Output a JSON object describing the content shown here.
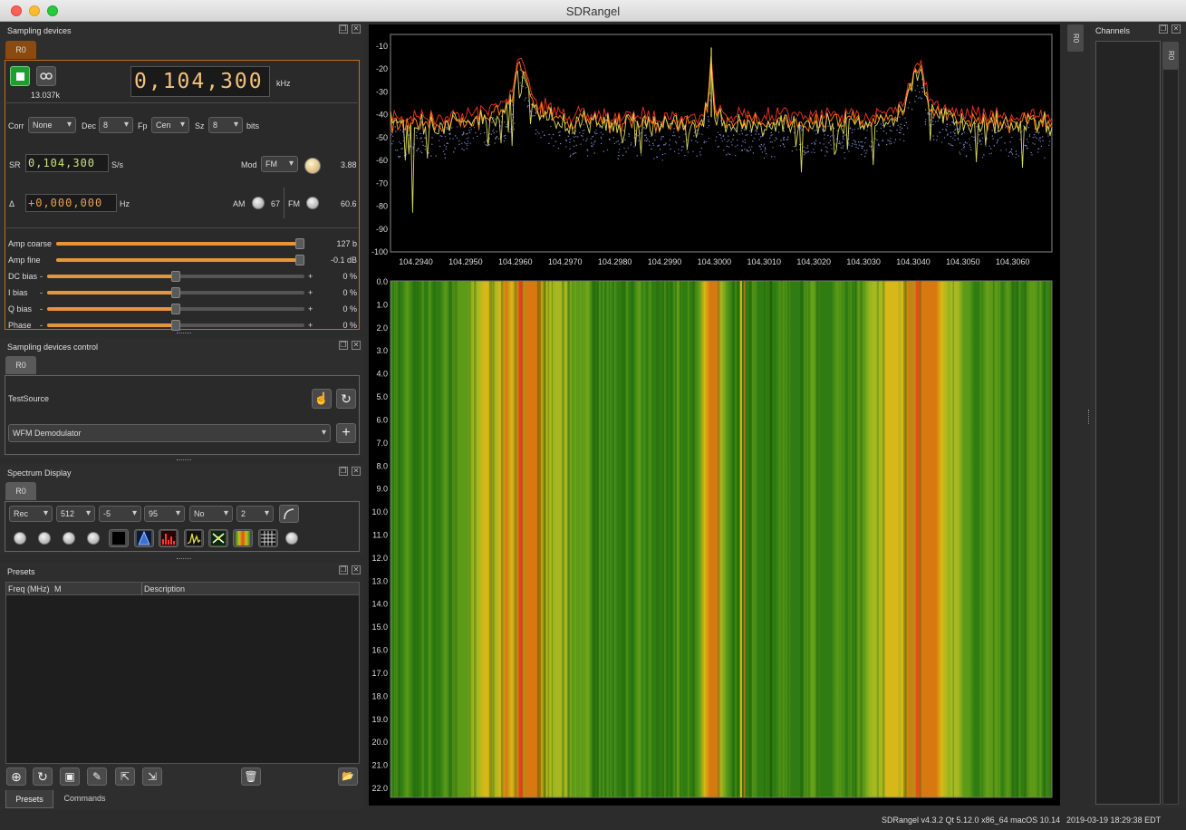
{
  "window": {
    "title": "SDRangel"
  },
  "sampling_devices": {
    "title": "Sampling devices",
    "tab": "R0",
    "sample_rate_under_play": "13.037k",
    "center_freq": "0,104,300",
    "freq_unit": "kHz",
    "corr_label": "Corr",
    "corr_value": "None",
    "dec_label": "Dec",
    "dec_value": "8",
    "fp_label": "Fp",
    "fp_value": "Cen",
    "sz_label": "Sz",
    "sz_value": "8",
    "bits_label": "bits",
    "sr_label": "SR",
    "sr_value": "0,104,300",
    "sr_unit": "S/s",
    "mod_label": "Mod",
    "mod_value": "FM",
    "mod_readout": "3.88",
    "delta_label": "Δ",
    "delta_value": "+0,000,000",
    "delta_unit": "Hz",
    "am_label": "AM",
    "am_value": "67",
    "fm_label": "FM",
    "fm_value": "60.6",
    "sliders": [
      {
        "label": "Amp coarse",
        "value": "127 b",
        "level": 1.0,
        "minus": "",
        "plus": ""
      },
      {
        "label": "Amp fine",
        "value": "-0.1 dB",
        "level": 1.0,
        "minus": "",
        "plus": ""
      },
      {
        "label": "DC bias",
        "value": "0 %",
        "level": 0.5,
        "minus": "-",
        "plus": "+"
      },
      {
        "label": "I bias",
        "value": "0 %",
        "level": 0.5,
        "minus": "-",
        "plus": "+"
      },
      {
        "label": "Q bias",
        "value": "0 %",
        "level": 0.5,
        "minus": "-",
        "plus": "+"
      },
      {
        "label": "Phase",
        "value": "0 %",
        "level": 0.5,
        "minus": "-",
        "plus": "+"
      }
    ]
  },
  "devices_control": {
    "title": "Sampling devices control",
    "tab": "R0",
    "device_name": "TestSource",
    "channel_select": "WFM Demodulator"
  },
  "spectrum_display": {
    "title": "Spectrum Display",
    "tab": "R0",
    "combos": [
      "Rec",
      "512",
      "-5",
      "95",
      "No",
      "2"
    ]
  },
  "presets": {
    "title": "Presets",
    "col_freq": "Freq (MHz)",
    "col_m": "M",
    "col_desc": "Description",
    "tab_presets": "Presets",
    "tab_commands": "Commands"
  },
  "channels": {
    "title": "Channels",
    "tab": "R0"
  },
  "main_tab": "R0",
  "spectrum": {
    "y_ticks": [
      "-10",
      "-20",
      "-30",
      "-40",
      "-50",
      "-60",
      "-70",
      "-80",
      "-90",
      "-100"
    ],
    "x_ticks": [
      "104.2940",
      "104.2950",
      "104.2960",
      "104.2970",
      "104.2980",
      "104.2990",
      "104.3000",
      "104.3010",
      "104.3020",
      "104.3030",
      "104.3040",
      "104.3050",
      "104.3060"
    ],
    "waterfall_ticks": [
      "0.0",
      "1.0",
      "2.0",
      "3.0",
      "4.0",
      "5.0",
      "6.0",
      "7.0",
      "8.0",
      "9.0",
      "10.0",
      "11.0",
      "12.0",
      "13.0",
      "14.0",
      "15.0",
      "16.0",
      "17.0",
      "18.0",
      "19.0",
      "20.0",
      "21.0",
      "22.0"
    ]
  },
  "status": {
    "version": "SDRangel v4.3.2 Qt 5.12.0 x86_64 macOS 10.14",
    "datetime": "2019-03-19 18:29:38 EDT"
  },
  "colors": {
    "accent": "#e5953a",
    "play_green": "#1d9e2f",
    "trace_orange": "#ff6a00",
    "trace_yellow": "#d8d860"
  }
}
